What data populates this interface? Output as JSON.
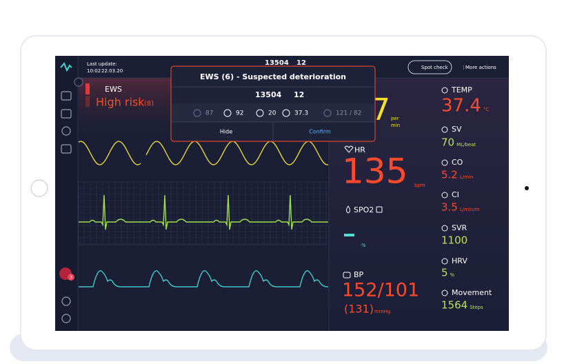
{
  "header": {
    "last_update_label": "Last update:",
    "time": "10:02",
    "date": "22.03.20",
    "patient_id": "13504",
    "bed": "12",
    "spot_check": "Spot check",
    "more_actions": "More actions"
  },
  "sidebar": {
    "alert_badge": "3"
  },
  "ews": {
    "label": "EWS",
    "risk": "High risk",
    "score": "(8)"
  },
  "modal": {
    "title": "EWS (6) - Suspected deterioration",
    "patient_id": "13504",
    "bed": "12",
    "vitals": [
      "87",
      "92",
      "20",
      "37.3",
      "121 / 82"
    ],
    "hide": "Hide",
    "confirm": "Confirm"
  },
  "rr": {
    "value": "7",
    "unit_line1": "per",
    "unit_line2": "min"
  },
  "hr": {
    "label": "HR",
    "value": "135",
    "unit": "bpm"
  },
  "spo2": {
    "label": "SPO2",
    "unit": "%"
  },
  "bp": {
    "label": "BP",
    "value": "152/101",
    "mean": "(131)",
    "unit": "mmHg"
  },
  "parameters": [
    {
      "label": "TEMP",
      "value": "37.4",
      "unit": "°C"
    },
    {
      "label": "SV",
      "value": "70",
      "unit": "ML/beat"
    },
    {
      "label": "CO",
      "value": "5.2",
      "unit": "L/min"
    },
    {
      "label": "CI",
      "value": "3.5",
      "unit": "L/min/m"
    },
    {
      "label": "SVR",
      "value": "1100"
    },
    {
      "label": "HRV",
      "value": "5",
      "unit": "%"
    },
    {
      "label": "Movement",
      "value": "1564",
      "unit": "Steps"
    }
  ]
}
